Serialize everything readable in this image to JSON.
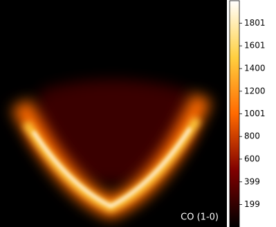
{
  "chart_data": {
    "type": "heatmap",
    "annotation": "CO (1-0)",
    "colorbar": {
      "lim": [
        0,
        2000
      ],
      "ticks": [
        199,
        399,
        600,
        800,
        1001,
        1200,
        1400,
        1601,
        1801
      ],
      "colormap": [
        "#000000",
        "#800000",
        "#ff6a00",
        "#ffd040",
        "#ffffff"
      ]
    }
  }
}
